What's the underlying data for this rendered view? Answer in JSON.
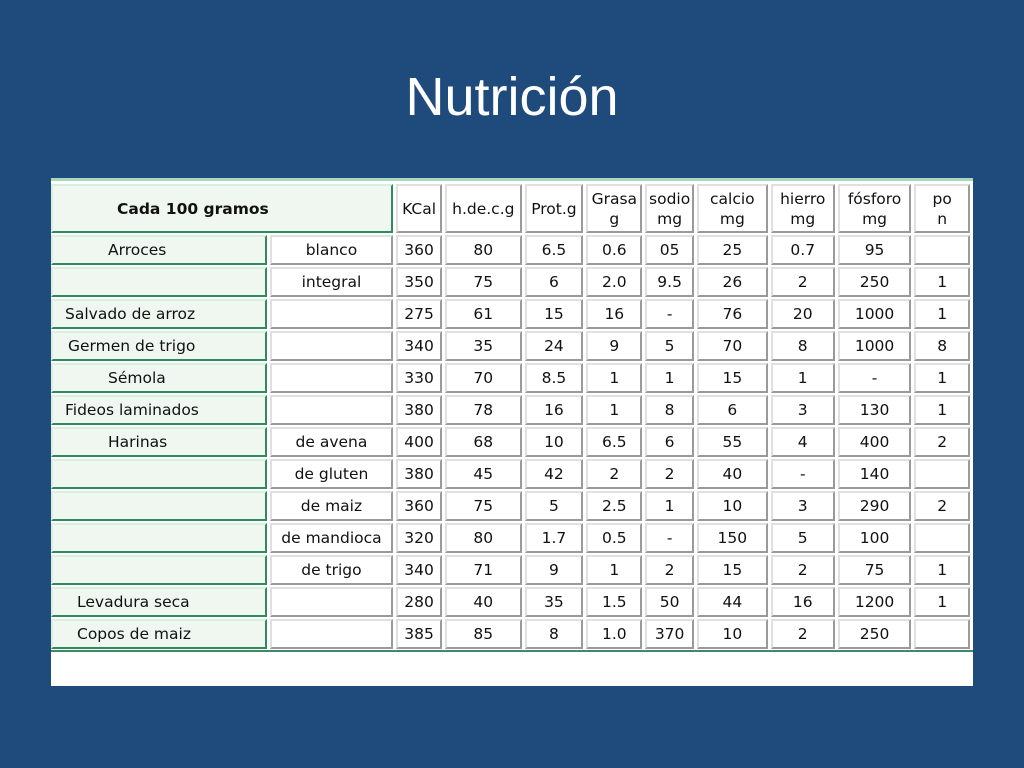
{
  "slide": {
    "title": "Nutrición"
  },
  "table": {
    "corner": "Cada 100 gramos",
    "columns": [
      {
        "line1": "KCal",
        "line2": ""
      },
      {
        "line1": "h.de.c.g",
        "line2": ""
      },
      {
        "line1": "Prot.g",
        "line2": ""
      },
      {
        "line1": "Grasa",
        "line2": "g"
      },
      {
        "line1": "sodio",
        "line2": "mg"
      },
      {
        "line1": "calcio",
        "line2": "mg"
      },
      {
        "line1": "hierro",
        "line2": "mg"
      },
      {
        "line1": "fósforo",
        "line2": "mg"
      },
      {
        "line1": "po",
        "line2": "n"
      }
    ],
    "rows": [
      {
        "group": "Arroces",
        "sub": "blanco",
        "values": [
          "360",
          "80",
          "6.5",
          "0.6",
          "05",
          "25",
          "0.7",
          "95",
          ""
        ]
      },
      {
        "group": "",
        "sub": "integral",
        "values": [
          "350",
          "75",
          "6",
          "2.0",
          "9.5",
          "26",
          "2",
          "250",
          "1"
        ]
      },
      {
        "group": "Salvado de arroz",
        "sub": "",
        "values": [
          "275",
          "61",
          "15",
          "16",
          "-",
          "76",
          "20",
          "1000",
          "1"
        ]
      },
      {
        "group": "Germen de trigo",
        "sub": "",
        "values": [
          "340",
          "35",
          "24",
          "9",
          "5",
          "70",
          "8",
          "1000",
          "8"
        ]
      },
      {
        "group": "Sémola",
        "sub": "",
        "values": [
          "330",
          "70",
          "8.5",
          "1",
          "1",
          "15",
          "1",
          "-",
          "1"
        ]
      },
      {
        "group": "Fideos laminados",
        "sub": "",
        "values": [
          "380",
          "78",
          "16",
          "1",
          "8",
          "6",
          "3",
          "130",
          "1"
        ]
      },
      {
        "group": "Harinas",
        "sub": "de avena",
        "values": [
          "400",
          "68",
          "10",
          "6.5",
          "6",
          "55",
          "4",
          "400",
          "2"
        ]
      },
      {
        "group": "",
        "sub": "de gluten",
        "values": [
          "380",
          "45",
          "42",
          "2",
          "2",
          "40",
          "-",
          "140",
          ""
        ]
      },
      {
        "group": "",
        "sub": "de maiz",
        "values": [
          "360",
          "75",
          "5",
          "2.5",
          "1",
          "10",
          "3",
          "290",
          "2"
        ]
      },
      {
        "group": "",
        "sub": "de mandioca",
        "values": [
          "320",
          "80",
          "1.7",
          "0.5",
          "-",
          "150",
          "5",
          "100",
          ""
        ]
      },
      {
        "group": "",
        "sub": "de trigo",
        "values": [
          "340",
          "71",
          "9",
          "1",
          "2",
          "15",
          "2",
          "75",
          "1"
        ]
      },
      {
        "group": "Levadura seca",
        "sub": "",
        "values": [
          "280",
          "40",
          "35",
          "1.5",
          "50",
          "44",
          "16",
          "1200",
          "1"
        ]
      },
      {
        "group": "Copos de maiz",
        "sub": "",
        "values": [
          "385",
          "85",
          "8",
          "1.0",
          "370",
          "10",
          "2",
          "250",
          ""
        ]
      }
    ]
  },
  "chart_data": {
    "type": "table",
    "title": "Nutrición",
    "columns": [
      "Cada 100 gramos",
      "",
      "KCal",
      "h.de.c.g",
      "Prot.g",
      "Grasa g",
      "sodio mg",
      "calcio mg",
      "hierro mg",
      "fósforo mg",
      "po n"
    ],
    "rows": [
      [
        "Arroces",
        "blanco",
        "360",
        "80",
        "6.5",
        "0.6",
        "05",
        "25",
        "0.7",
        "95",
        ""
      ],
      [
        "",
        "integral",
        "350",
        "75",
        "6",
        "2.0",
        "9.5",
        "26",
        "2",
        "250",
        "1"
      ],
      [
        "Salvado de arroz",
        "",
        "275",
        "61",
        "15",
        "16",
        "-",
        "76",
        "20",
        "1000",
        "1"
      ],
      [
        "Germen de trigo",
        "",
        "340",
        "35",
        "24",
        "9",
        "5",
        "70",
        "8",
        "1000",
        "8"
      ],
      [
        "Sémola",
        "",
        "330",
        "70",
        "8.5",
        "1",
        "1",
        "15",
        "1",
        "-",
        "1"
      ],
      [
        "Fideos laminados",
        "",
        "380",
        "78",
        "16",
        "1",
        "8",
        "6",
        "3",
        "130",
        "1"
      ],
      [
        "Harinas",
        "de avena",
        "400",
        "68",
        "10",
        "6.5",
        "6",
        "55",
        "4",
        "400",
        "2"
      ],
      [
        "",
        "de gluten",
        "380",
        "45",
        "42",
        "2",
        "2",
        "40",
        "-",
        "140",
        ""
      ],
      [
        "",
        "de maiz",
        "360",
        "75",
        "5",
        "2.5",
        "1",
        "10",
        "3",
        "290",
        "2"
      ],
      [
        "",
        "de mandioca",
        "320",
        "80",
        "1.7",
        "0.5",
        "-",
        "150",
        "5",
        "100",
        ""
      ],
      [
        "",
        "de trigo",
        "340",
        "71",
        "9",
        "1",
        "2",
        "15",
        "2",
        "75",
        "1"
      ],
      [
        "Levadura seca",
        "",
        "280",
        "40",
        "35",
        "1.5",
        "50",
        "44",
        "16",
        "1200",
        "1"
      ],
      [
        "Copos de maiz",
        "",
        "385",
        "85",
        "8",
        "1.0",
        "370",
        "10",
        "2",
        "250",
        ""
      ]
    ]
  }
}
